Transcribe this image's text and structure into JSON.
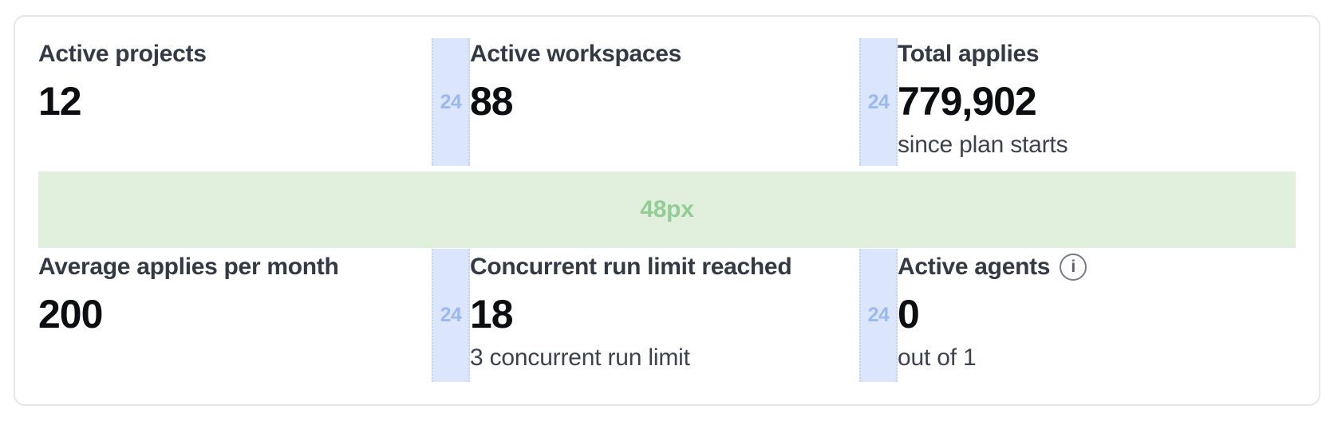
{
  "overlay": {
    "column_gap_label": "24",
    "row_gap_label": "48px",
    "column_gap_fill": "#dbe6fc",
    "column_gap_text_color": "#9cb8f3",
    "row_gap_fill": "#e1efdd",
    "row_gap_text_color": "#93cc95"
  },
  "icons": {
    "info": "i"
  },
  "stats": {
    "rows": [
      {
        "cells": [
          {
            "label": "Active projects",
            "value": "12"
          },
          {
            "label": "Active workspaces",
            "value": "88"
          },
          {
            "label": "Total applies",
            "value": "779,902",
            "sublabel": "since plan starts"
          }
        ]
      },
      {
        "cells": [
          {
            "label": "Average applies per month",
            "value": "200"
          },
          {
            "label": "Concurrent run limit reached",
            "value": "18",
            "sublabel": "3 concurrent run limit"
          },
          {
            "label": "Active agents",
            "value": "0",
            "sublabel": "out of 1"
          }
        ]
      }
    ]
  },
  "colors": {
    "card_border": "#e6e7eb",
    "label_text": "#333a46",
    "value_text": "#0d0e11",
    "sublabel_text": "#3c4250"
  }
}
